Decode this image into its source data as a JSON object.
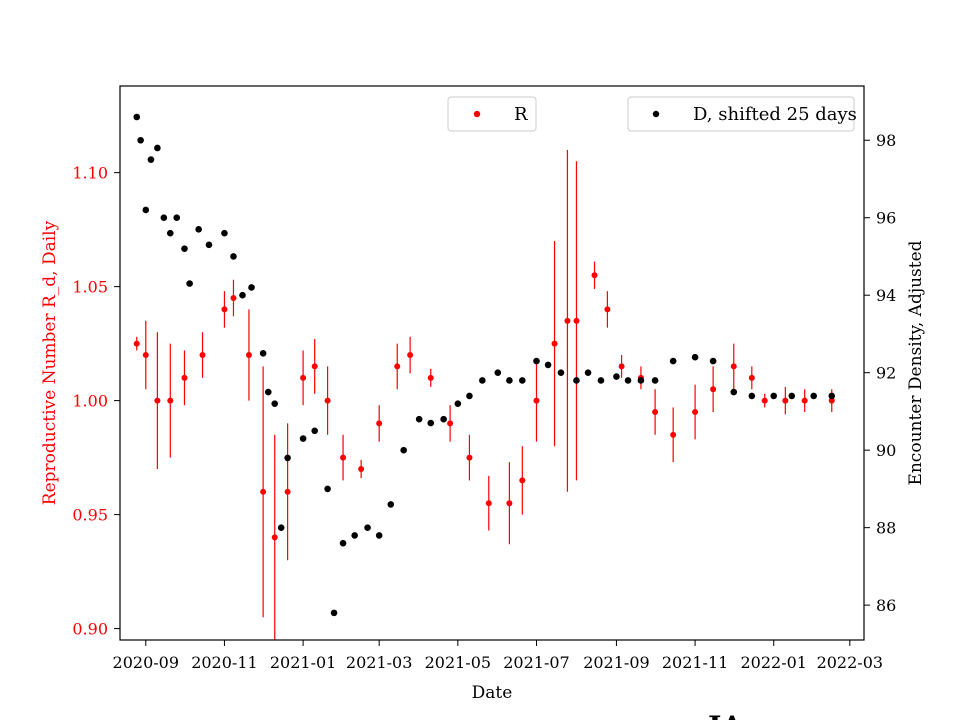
{
  "chart_data": {
    "type": "scatter",
    "xlabel": "Date",
    "ylabel_left": "Reproductive Number R_d, Daily",
    "ylabel_right": "Encounter Density, Adjusted",
    "x_ticks": [
      "2020-09",
      "2020-11",
      "2021-01",
      "2021-03",
      "2021-05",
      "2021-07",
      "2021-09",
      "2021-11",
      "2022-01",
      "2022-03"
    ],
    "xlim": [
      "2020-08-12",
      "2022-03-12"
    ],
    "y_left_ticks": [
      "0.90",
      "0.95",
      "1.00",
      "1.05",
      "1.10"
    ],
    "y_left_lim": [
      0.895,
      1.138
    ],
    "y_right_ticks": [
      "86",
      "88",
      "90",
      "92",
      "94",
      "96",
      "98"
    ],
    "y_right_lim": [
      85.1,
      99.4
    ],
    "colors": {
      "R": "#ff0000",
      "D": "#000000"
    },
    "legend": [
      {
        "label": "R",
        "color": "#ff0000",
        "placement": "upper-center"
      },
      {
        "label": "D, shifted 25 days",
        "color": "#000000",
        "placement": "upper-right"
      }
    ],
    "series": [
      {
        "name": "R",
        "axis": "left",
        "marker": "point with errorbars",
        "x": [
          "2020-08-25",
          "2020-09-01",
          "2020-09-10",
          "2020-09-20",
          "2020-10-01",
          "2020-10-15",
          "2020-11-01",
          "2020-11-08",
          "2020-11-20",
          "2020-12-01",
          "2020-12-10",
          "2020-12-20",
          "2021-01-01",
          "2021-01-10",
          "2021-01-20",
          "2021-02-01",
          "2021-02-15",
          "2021-03-01",
          "2021-03-15",
          "2021-03-25",
          "2021-04-10",
          "2021-04-25",
          "2021-05-10",
          "2021-05-25",
          "2021-06-10",
          "2021-06-20",
          "2021-07-01",
          "2021-07-15",
          "2021-07-25",
          "2021-08-01",
          "2021-08-15",
          "2021-08-25",
          "2021-09-05",
          "2021-09-20",
          "2021-10-01",
          "2021-10-15",
          "2021-11-01",
          "2021-11-15",
          "2021-12-01",
          "2021-12-15",
          "2021-12-25",
          "2022-01-10",
          "2022-01-25",
          "2022-02-15"
        ],
        "y": [
          1.025,
          1.02,
          1.0,
          1.0,
          1.01,
          1.02,
          1.04,
          1.045,
          1.02,
          0.96,
          0.94,
          0.96,
          1.01,
          1.015,
          1.0,
          0.975,
          0.97,
          0.99,
          1.015,
          1.02,
          1.01,
          0.99,
          0.975,
          0.955,
          0.955,
          0.965,
          1.0,
          1.025,
          1.035,
          1.035,
          1.055,
          1.04,
          1.015,
          1.01,
          0.995,
          0.985,
          0.995,
          1.005,
          1.015,
          1.01,
          1.0,
          1.0,
          1.0,
          1.0
        ],
        "err": [
          0.003,
          0.015,
          0.03,
          0.025,
          0.012,
          0.01,
          0.008,
          0.008,
          0.02,
          0.055,
          0.045,
          0.03,
          0.012,
          0.012,
          0.015,
          0.01,
          0.004,
          0.008,
          0.01,
          0.008,
          0.004,
          0.008,
          0.01,
          0.012,
          0.018,
          0.015,
          0.018,
          0.045,
          0.075,
          0.07,
          0.006,
          0.008,
          0.005,
          0.005,
          0.01,
          0.012,
          0.012,
          0.01,
          0.01,
          0.005,
          0.003,
          0.006,
          0.005,
          0.005
        ]
      },
      {
        "name": "D, shifted 25 days",
        "axis": "right",
        "marker": "point",
        "x": [
          "2020-08-25",
          "2020-08-28",
          "2020-09-01",
          "2020-09-05",
          "2020-09-10",
          "2020-09-15",
          "2020-09-20",
          "2020-09-25",
          "2020-10-01",
          "2020-10-05",
          "2020-10-12",
          "2020-10-20",
          "2020-11-01",
          "2020-11-08",
          "2020-11-15",
          "2020-11-22",
          "2020-12-01",
          "2020-12-05",
          "2020-12-10",
          "2020-12-15",
          "2020-12-20",
          "2021-01-01",
          "2021-01-10",
          "2021-01-20",
          "2021-01-25",
          "2021-02-01",
          "2021-02-10",
          "2021-02-20",
          "2021-03-01",
          "2021-03-10",
          "2021-03-20",
          "2021-04-01",
          "2021-04-10",
          "2021-04-20",
          "2021-05-01",
          "2021-05-10",
          "2021-05-20",
          "2021-06-01",
          "2021-06-10",
          "2021-06-20",
          "2021-07-01",
          "2021-07-10",
          "2021-07-20",
          "2021-08-01",
          "2021-08-10",
          "2021-08-20",
          "2021-09-01",
          "2021-09-10",
          "2021-09-20",
          "2021-10-01",
          "2021-10-15",
          "2021-11-01",
          "2021-11-15",
          "2021-12-01",
          "2021-12-15",
          "2022-01-01",
          "2022-01-15",
          "2022-02-01",
          "2022-02-15"
        ],
        "y": [
          98.6,
          98.0,
          96.2,
          97.5,
          97.8,
          96.0,
          95.6,
          96.0,
          95.2,
          94.3,
          95.7,
          95.3,
          95.6,
          95.0,
          94.0,
          94.2,
          92.5,
          91.5,
          91.2,
          88.0,
          89.8,
          90.3,
          90.5,
          89.0,
          85.8,
          87.6,
          87.8,
          88.0,
          87.8,
          88.6,
          90.0,
          90.8,
          90.7,
          90.8,
          91.2,
          91.4,
          91.8,
          92.0,
          91.8,
          91.8,
          92.3,
          92.2,
          92.0,
          91.8,
          92.0,
          91.8,
          91.9,
          91.8,
          91.8,
          91.8,
          92.3,
          92.4,
          92.3,
          91.5,
          91.4,
          91.4,
          91.4,
          91.4,
          91.4
        ]
      }
    ]
  },
  "watermark": "JA"
}
